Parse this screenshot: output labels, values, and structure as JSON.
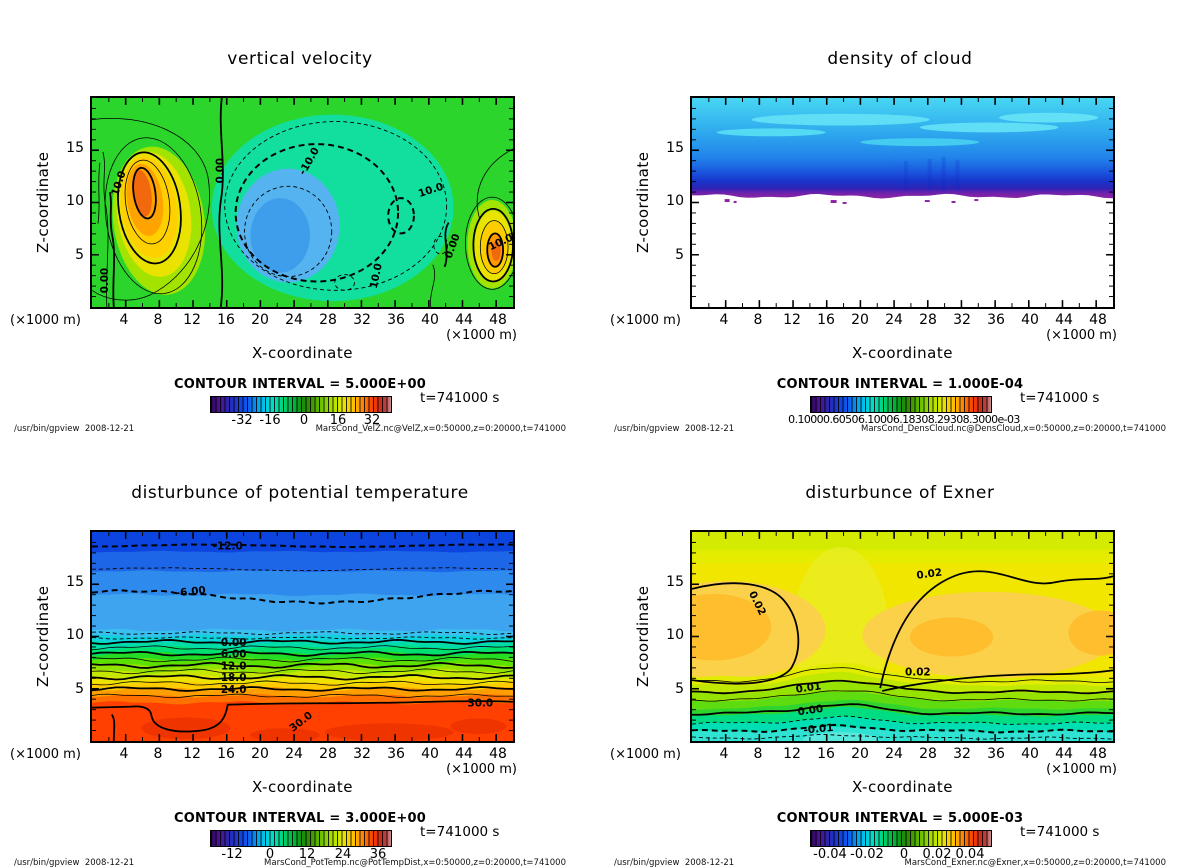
{
  "shared": {
    "program": "/usr/bin/gpview",
    "date": "2008-12-21",
    "footer_left": "/usr/bin/gpview  2008-12-21",
    "time_label": "t=741000 s",
    "xlabel": "X-coordinate",
    "ylabel": "Z-coordinate",
    "axis_unit": "(×1000 m)",
    "x_ticks": [
      "4",
      "8",
      "12",
      "16",
      "20",
      "24",
      "28",
      "32",
      "36",
      "40",
      "44",
      "48"
    ],
    "y_ticks": [
      "5",
      "10",
      "15"
    ]
  },
  "panels": [
    {
      "id": "vertical-velocity",
      "title": "vertical velocity",
      "contour_interval": "CONTOUR INTERVAL = 5.000E+00",
      "colorbar_ticks": [
        "-32",
        "-16",
        "0",
        "16",
        "32"
      ],
      "footer_dataset": "MarsCond_VelZ.nc@VelZ,x=0:50000,z=0:20000,t=741000",
      "contour_labels": [
        "10.0",
        "0.00",
        "-10.0",
        "10.0",
        "10.0",
        "0.00",
        "10.0",
        "0.00"
      ]
    },
    {
      "id": "density-of-cloud",
      "title": "density of cloud",
      "contour_interval": "CONTOUR INTERVAL = 1.000E-04",
      "colorbar_ticks": [
        "0.10000.60506.10006.18308.29308.3000e-03"
      ],
      "footer_dataset": "MarsCond_DensCloud.nc@DensCloud,x=0:50000,z=0:20000,t=741000",
      "contour_labels": []
    },
    {
      "id": "disturbance-of-potential-temperature",
      "title": "disturbunce of potential temperature",
      "contour_interval": "CONTOUR INTERVAL = 3.000E+00",
      "colorbar_ticks": [
        "-12",
        "0",
        "12",
        "24",
        "36"
      ],
      "footer_dataset": "MarsCond_PotTemp.nc@PotTempDist,x=0:50000,z=0:20000,t=741000",
      "contour_labels": [
        "-12.0",
        "-6.00",
        "0.00",
        "6.00",
        "12.0",
        "18.0",
        "24.0",
        "30.0",
        "30.0"
      ]
    },
    {
      "id": "disturbance-of-exner",
      "title": "disturbunce of Exner",
      "contour_interval": "CONTOUR INTERVAL = 5.000E-03",
      "colorbar_ticks": [
        "-0.04",
        "-0.02",
        "0",
        "0.02",
        "0.04"
      ],
      "footer_dataset": "MarsCond_Exner.nc@Exner,x=0:50000,z=0:20000,t=741000",
      "contour_labels": [
        "0.02",
        "0.02",
        "0.02",
        "0.01",
        "0.00",
        "-0.01"
      ]
    }
  ],
  "colors": {
    "background_green": "#2BD52B",
    "updraft_core_orange": "#F2690D",
    "downdraft_blue": "#3F9EEC",
    "midlevel_teal": "#12DF9E",
    "cloud_top_cyan": "#48D8F3",
    "cloud_base_purple": "#8E24A4",
    "warm_surface_red": "#FF4000",
    "cold_top_blue": "#0C44DF",
    "exner_yellow": "#F0E600",
    "exner_orange": "#FFBE2E"
  },
  "chart_data": [
    {
      "type": "heatmap",
      "style": "filled_contour",
      "title": "vertical velocity",
      "xlabel": "X-coordinate",
      "ylabel": "Z-coordinate",
      "x_unit": "×1000 m",
      "y_unit": "×1000 m",
      "x_range": [
        0,
        50
      ],
      "y_range": [
        0,
        20
      ],
      "x_ticks": [
        4,
        8,
        12,
        16,
        20,
        24,
        28,
        32,
        36,
        40,
        44,
        48
      ],
      "y_ticks": [
        5,
        10,
        15
      ],
      "contour_interval": 5.0,
      "colorbar_ticks": [
        -32,
        -16,
        0,
        16,
        32
      ],
      "contour_line_labels": [
        "10.0",
        "0.00",
        "-10.0"
      ],
      "time": "t=741000 s",
      "legend_position": "bottom",
      "features": [
        "strong updraft cell ~ +30 to +35 (orange core) centered near x=6, z=10",
        "second updraft cell ~ +30 near the right edge, x=48, z=6",
        "broad downdraft region ~ -10 to -20 (blue core) centered near x=21, z=7, outlined by dashed contours",
        "near-zero green background elsewhere; thick 0.00 contour running vertically near x=15"
      ]
    },
    {
      "type": "heatmap",
      "style": "filled_contour",
      "title": "density of cloud",
      "xlabel": "X-coordinate",
      "ylabel": "Z-coordinate",
      "x_unit": "×1000 m",
      "y_unit": "×1000 m",
      "x_range": [
        0,
        50
      ],
      "y_range": [
        0,
        20
      ],
      "x_ticks": [
        4,
        8,
        12,
        16,
        20,
        24,
        28,
        32,
        36,
        40,
        44,
        48
      ],
      "y_ticks": [
        5,
        10,
        15
      ],
      "contour_interval": 0.0001,
      "colorbar_overlapped_label": "0.10000.60506.10006.18308.29308.3000e-03",
      "time": "t=741000 s",
      "legend_position": "bottom",
      "features": [
        "cloud layer fills z~10.5 to 20; white (no cloud) below z~10.5",
        "density increases downward: light cyan at top, dark blue near z~11-12",
        "thin purple maximum band at the cloud base z~10.5-11 with irregular edge and detached speckles",
        "faint lighter streaks in the upper cyan region"
      ]
    },
    {
      "type": "heatmap",
      "style": "filled_contour",
      "title": "disturbunce of potential temperature",
      "xlabel": "X-coordinate",
      "ylabel": "Z-coordinate",
      "x_unit": "×1000 m",
      "y_unit": "×1000 m",
      "x_range": [
        0,
        50
      ],
      "y_range": [
        0,
        20
      ],
      "x_ticks": [
        4,
        8,
        12,
        16,
        20,
        24,
        28,
        32,
        36,
        40,
        44,
        48
      ],
      "y_ticks": [
        5,
        10,
        15
      ],
      "contour_interval": 3.0,
      "colorbar_ticks": [
        -12,
        0,
        12,
        24,
        36
      ],
      "contour_line_labels": [
        "-12.0",
        "-6.00",
        "0.00",
        "6.00",
        "12.0",
        "18.0",
        "24.0",
        "30.0"
      ],
      "time": "t=741000 s",
      "legend_position": "bottom",
      "features": [
        "horizontally stratified field decreasing with height",
        "red near-surface layer ~ +33 below z~4; 30.0 contour near z~4 with a dip between x~5 and x~13",
        "labeled contours 0.00/6.00/12.0/18.0/24.0 tightly packed between z~10 and z~4",
        "wavy dashed -6.00 contour near z~13-15; dark blue top layer ~ -14 with dashed -12.0 contour near z~19"
      ]
    },
    {
      "type": "heatmap",
      "style": "filled_contour",
      "title": "disturbunce of Exner",
      "xlabel": "X-coordinate",
      "ylabel": "Z-coordinate",
      "x_unit": "×1000 m",
      "y_unit": "×1000 m",
      "x_range": [
        0,
        50
      ],
      "y_range": [
        0,
        20
      ],
      "x_ticks": [
        4,
        8,
        12,
        16,
        20,
        24,
        28,
        32,
        36,
        40,
        44,
        48
      ],
      "y_ticks": [
        5,
        10,
        15
      ],
      "contour_interval": 0.005,
      "colorbar_ticks": [
        -0.04,
        -0.02,
        0,
        0.02,
        0.04
      ],
      "contour_line_labels": [
        "0.02",
        "0.01",
        "0.00",
        "-0.01"
      ],
      "time": "t=741000 s",
      "legend_position": "bottom",
      "features": [
        "two orange maxima lobes ~ +0.025 to +0.03 near z~10: one at x~0-12, one spanning x~20-50",
        "thick 0.02 contour enclosing both lobes between z~7 and z~16.5",
        "values decrease toward the ground through 0.01 and 0.00 to ~ -0.015 (cyan) at the bottom",
        "all lower contours bulge upward near x~14-16"
      ]
    }
  ]
}
